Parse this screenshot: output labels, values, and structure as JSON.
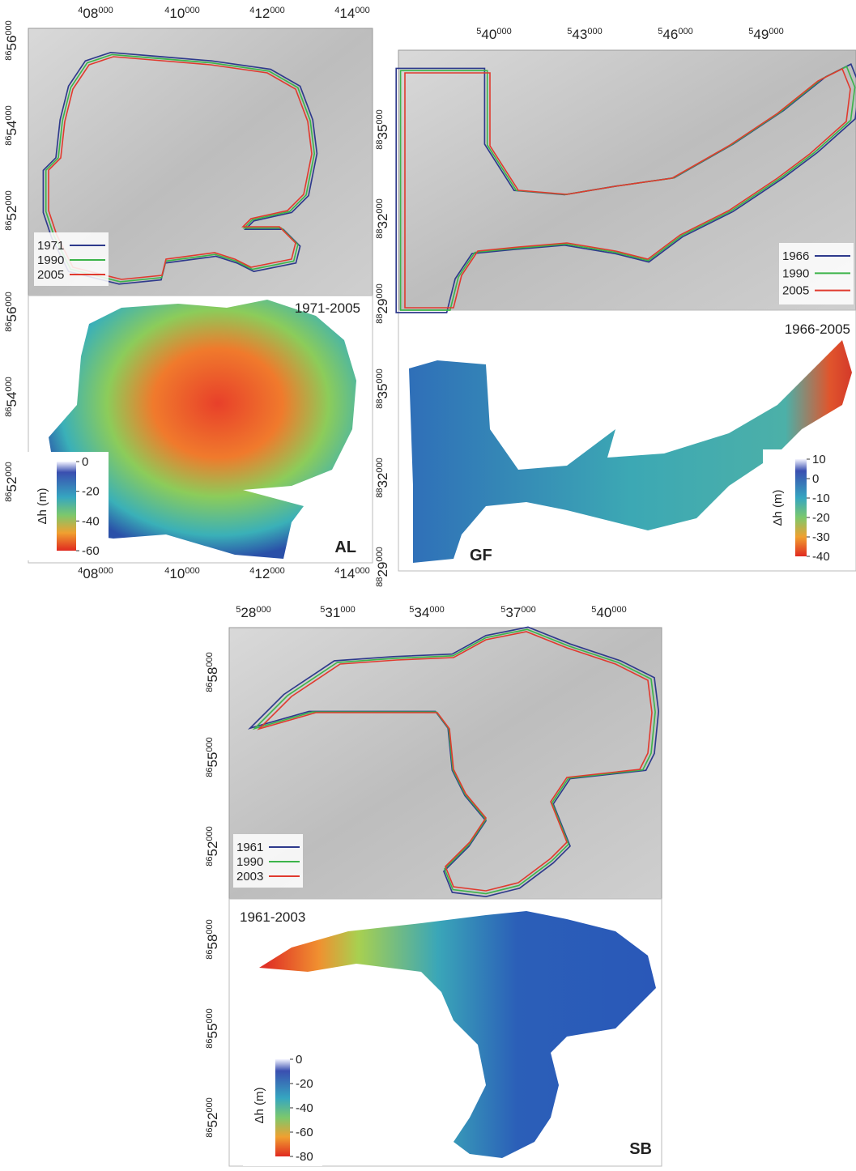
{
  "panels": [
    {
      "site": "AL",
      "period": "1971-2005",
      "x_labels_top": [
        {
          "pre": "4",
          "main": "08",
          "post": "000"
        },
        {
          "pre": "4",
          "main": "10",
          "post": "000"
        },
        {
          "pre": "4",
          "main": "12",
          "post": "000"
        },
        {
          "pre": "4",
          "main": "14",
          "post": "000"
        }
      ],
      "x_labels_bottom": [
        {
          "pre": "4",
          "main": "08",
          "post": "000"
        },
        {
          "pre": "4",
          "main": "10",
          "post": "000"
        },
        {
          "pre": "4",
          "main": "12",
          "post": "000"
        },
        {
          "pre": "4",
          "main": "14",
          "post": "000"
        }
      ],
      "y_labels_upper": [
        {
          "pre": "86",
          "main": "56",
          "post": "000"
        },
        {
          "pre": "86",
          "main": "54",
          "post": "000"
        },
        {
          "pre": "86",
          "main": "52",
          "post": "000"
        }
      ],
      "y_labels_lower": [
        {
          "pre": "86",
          "main": "56",
          "post": "000"
        },
        {
          "pre": "86",
          "main": "54",
          "post": "000"
        },
        {
          "pre": "86",
          "main": "52",
          "post": "000"
        }
      ],
      "legend": [
        {
          "year": "1971",
          "color": "#2e3a8c"
        },
        {
          "year": "1990",
          "color": "#3cb44a"
        },
        {
          "year": "2005",
          "color": "#e03a2e"
        }
      ],
      "colorbar": {
        "title": "Δh (m)",
        "ticks": [
          0,
          -20,
          -40,
          -60
        ]
      }
    },
    {
      "site": "GF",
      "period": "1966-2005",
      "x_labels_top": [
        {
          "pre": "5",
          "main": "40",
          "post": "000"
        },
        {
          "pre": "5",
          "main": "43",
          "post": "000"
        },
        {
          "pre": "5",
          "main": "46",
          "post": "000"
        },
        {
          "pre": "5",
          "main": "49",
          "post": "000"
        }
      ],
      "y_labels_upper": [
        {
          "pre": "88",
          "main": "35",
          "post": "000"
        },
        {
          "pre": "88",
          "main": "32",
          "post": "000"
        },
        {
          "pre": "88",
          "main": "29",
          "post": "000"
        }
      ],
      "y_labels_lower": [
        {
          "pre": "88",
          "main": "35",
          "post": "000"
        },
        {
          "pre": "88",
          "main": "32",
          "post": "000"
        },
        {
          "pre": "88",
          "main": "29",
          "post": "000"
        }
      ],
      "legend": [
        {
          "year": "1966",
          "color": "#2e3a8c"
        },
        {
          "year": "1990",
          "color": "#3cb44a"
        },
        {
          "year": "2005",
          "color": "#e03a2e"
        }
      ],
      "colorbar": {
        "title": "Δh (m)",
        "ticks": [
          10,
          0,
          -10,
          -20,
          -30,
          -40
        ]
      }
    },
    {
      "site": "SB",
      "period": "1961-2003",
      "x_labels_top": [
        {
          "pre": "5",
          "main": "28",
          "post": "000"
        },
        {
          "pre": "5",
          "main": "31",
          "post": "000"
        },
        {
          "pre": "5",
          "main": "34",
          "post": "000"
        },
        {
          "pre": "5",
          "main": "37",
          "post": "000"
        },
        {
          "pre": "5",
          "main": "40",
          "post": "000"
        }
      ],
      "y_labels_upper": [
        {
          "pre": "86",
          "main": "58",
          "post": "000"
        },
        {
          "pre": "86",
          "main": "55",
          "post": "000"
        },
        {
          "pre": "86",
          "main": "52",
          "post": "000"
        }
      ],
      "y_labels_lower": [
        {
          "pre": "86",
          "main": "58",
          "post": "000"
        },
        {
          "pre": "86",
          "main": "55",
          "post": "000"
        },
        {
          "pre": "86",
          "main": "52",
          "post": "000"
        }
      ],
      "legend": [
        {
          "year": "1961",
          "color": "#2e3a8c"
        },
        {
          "year": "1990",
          "color": "#3cb44a"
        },
        {
          "year": "2003",
          "color": "#e03a2e"
        }
      ],
      "colorbar": {
        "title": "Δh (m)",
        "ticks": [
          0,
          -20,
          -40,
          -60,
          -80
        ]
      }
    }
  ]
}
